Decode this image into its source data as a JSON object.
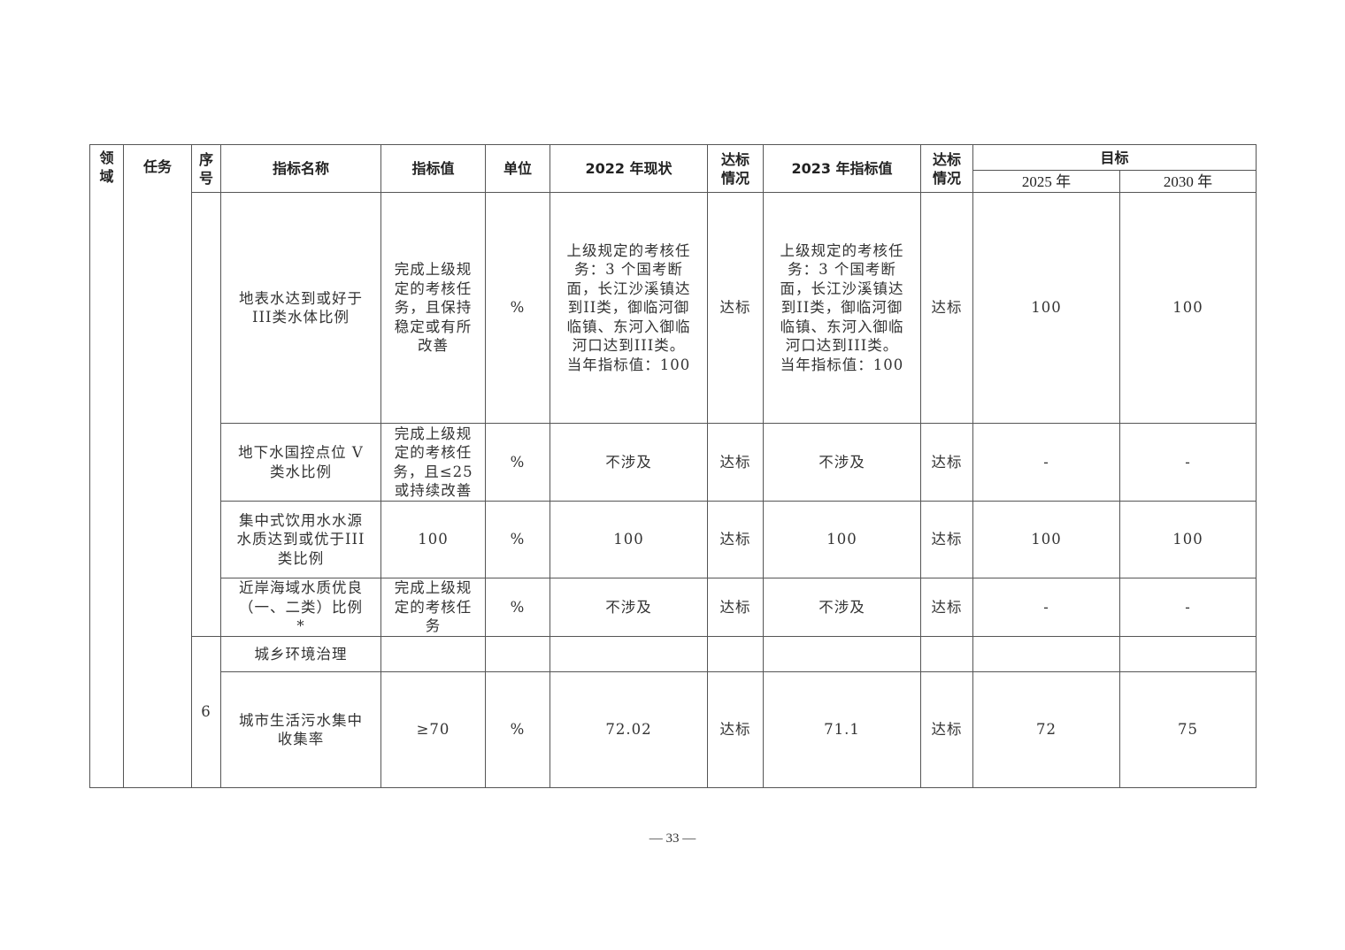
{
  "header": {
    "field": "领\n域",
    "task": "任务",
    "seq": "序\n号",
    "indicator_name": "指标名称",
    "indicator_value": "指标值",
    "unit": "单位",
    "status_2022": "2022 年现状",
    "compliance_a": "达标\n情况",
    "target_2023": "2023 年指标值",
    "compliance_b": "达标\n情况",
    "goal": "目标",
    "goal_2025": "2025 年",
    "goal_2030": "2030 年"
  },
  "rows": [
    {
      "name": "地表水达到或好于\nIII类水体比例",
      "value": "完成上级规\n定的考核任\n务，且保持\n稳定或有所\n改善",
      "unit": "%",
      "s2022": "上级规定的考核任\n务：3 个国考断\n面，长江沙溪镇达\n到II类，御临河御\n临镇、东河入御临\n河口达到III类。\n当年指标值：100",
      "c1": "达标",
      "t2023": "上级规定的考核任\n务：3 个国考断\n面，长江沙溪镇达\n到II类，御临河御\n临镇、东河入御临\n河口达到III类。\n当年指标值：100",
      "c2": "达标",
      "g2025": "100",
      "g2030": "100"
    },
    {
      "name": "地下水国控点位 V\n类水比例",
      "value": "完成上级规\n定的考核任\n务，且≤25\n或持续改善",
      "unit": "%",
      "s2022": "不涉及",
      "c1": "达标",
      "t2023": "不涉及",
      "c2": "达标",
      "g2025": "-",
      "g2030": "-"
    },
    {
      "name": "集中式饮用水水源\n水质达到或优于III\n类比例",
      "value": "100",
      "unit": "%",
      "s2022": "100",
      "c1": "达标",
      "t2023": "100",
      "c2": "达标",
      "g2025": "100",
      "g2030": "100"
    },
    {
      "name": "近岸海域水质优良\n（一、二类）比例\n*",
      "value": "完成上级规\n定的考核任\n务",
      "unit": "%",
      "s2022": "不涉及",
      "c1": "达标",
      "t2023": "不涉及",
      "c2": "达标",
      "g2025": "-",
      "g2030": "-"
    }
  ],
  "section": {
    "seq": "6",
    "title": "城乡环境治理"
  },
  "row6": {
    "name": "城市生活污水集中\n收集率",
    "value": "≥70",
    "unit": "%",
    "s2022": "72.02",
    "c1": "达标",
    "t2023": "71.1",
    "c2": "达标",
    "g2025": "72",
    "g2030": "75"
  },
  "page_number": "— 33 —"
}
